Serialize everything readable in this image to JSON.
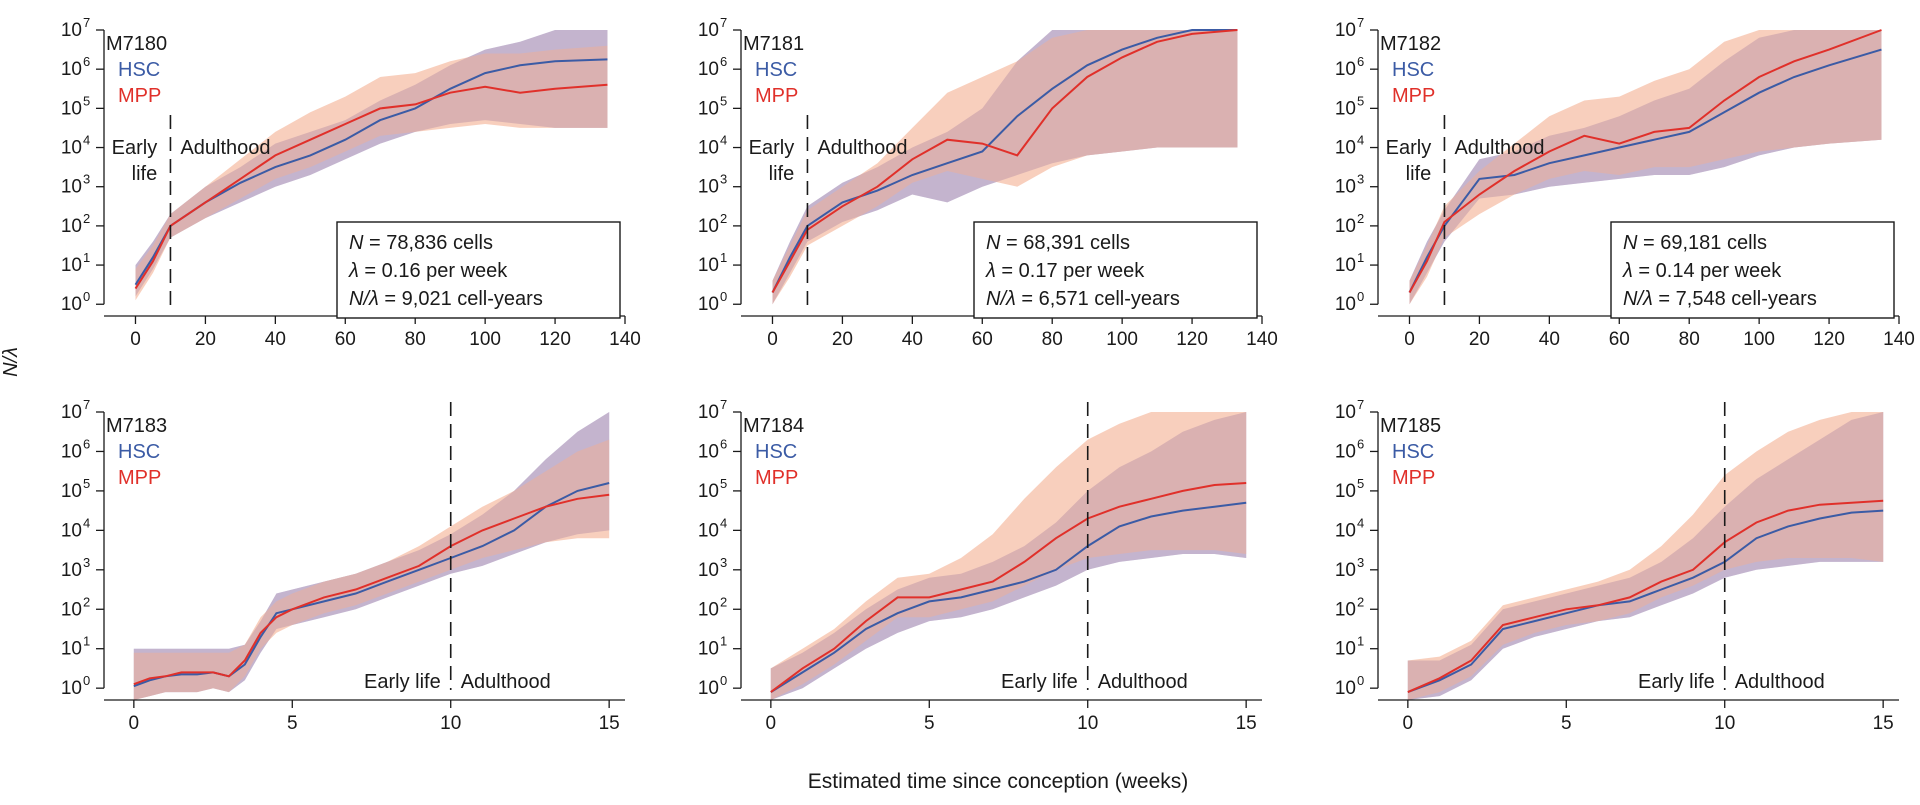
{
  "figure": {
    "ylabel": "N/λ",
    "xlabel": "Estimated time since conception (weeks)"
  },
  "colors": {
    "hsc": "#3b5ba5",
    "mpp": "#e0302a",
    "hsc_band": "#b9c1eb",
    "mpp_band": "#f6c3ad",
    "overlap": "#c69aa6",
    "axis": "#1a1a1a"
  },
  "legend": {
    "hsc": "HSC",
    "mpp": "MPP"
  },
  "chart_data": [
    {
      "type": "line",
      "id": "M7180",
      "title": "M7180",
      "xlim": [
        -5,
        140
      ],
      "xticks": [
        0,
        20,
        40,
        60,
        80,
        100,
        120,
        140
      ],
      "ylim_log10": [
        -0.3,
        7
      ],
      "yticks_log10": [
        0,
        1,
        2,
        3,
        4,
        5,
        6,
        7
      ],
      "divider_x": 10,
      "period_labels": {
        "early": [
          "Early",
          "life"
        ],
        "adult": "Adulthood"
      },
      "stats": {
        "N": "78,836",
        "lambda": "0.16",
        "N_over_lambda": "9,021"
      },
      "series": [
        {
          "name": "HSC",
          "x": [
            0,
            5,
            10,
            20,
            30,
            40,
            50,
            60,
            70,
            80,
            90,
            100,
            110,
            120,
            135
          ],
          "log10_y": [
            0.5,
            1.2,
            2.0,
            2.6,
            3.1,
            3.5,
            3.8,
            4.2,
            4.7,
            5.0,
            5.5,
            5.9,
            6.1,
            6.2,
            6.25
          ],
          "lower": [
            0.2,
            0.9,
            1.7,
            2.2,
            2.6,
            3.0,
            3.3,
            3.7,
            4.1,
            4.4,
            4.6,
            4.7,
            4.6,
            4.5,
            4.5
          ],
          "upper": [
            1.0,
            1.6,
            2.3,
            3.0,
            3.5,
            4.1,
            4.4,
            4.7,
            5.2,
            5.6,
            6.1,
            6.5,
            6.7,
            7.0,
            7.0
          ]
        },
        {
          "name": "MPP",
          "x": [
            0,
            5,
            10,
            20,
            30,
            40,
            50,
            60,
            70,
            80,
            90,
            100,
            110,
            120,
            135
          ],
          "log10_y": [
            0.4,
            1.1,
            2.0,
            2.6,
            3.2,
            3.8,
            4.2,
            4.6,
            5.0,
            5.1,
            5.4,
            5.55,
            5.4,
            5.5,
            5.6
          ],
          "lower": [
            0.1,
            0.8,
            1.7,
            2.2,
            2.7,
            3.2,
            3.5,
            3.9,
            4.3,
            4.4,
            4.5,
            4.6,
            4.5,
            4.5,
            4.5
          ],
          "upper": [
            0.9,
            1.5,
            2.3,
            3.0,
            3.7,
            4.4,
            4.9,
            5.3,
            5.8,
            5.9,
            6.2,
            6.4,
            6.4,
            6.5,
            6.6
          ]
        }
      ]
    },
    {
      "type": "line",
      "id": "M7181",
      "title": "M7181",
      "xlim": [
        -5,
        140
      ],
      "xticks": [
        0,
        20,
        40,
        60,
        80,
        100,
        120,
        140
      ],
      "ylim_log10": [
        -0.3,
        7
      ],
      "yticks_log10": [
        0,
        1,
        2,
        3,
        4,
        5,
        6,
        7
      ],
      "divider_x": 10,
      "period_labels": {
        "early": [
          "Early",
          "life"
        ],
        "adult": "Adulthood"
      },
      "stats": {
        "N": "68,391",
        "lambda": "0.17",
        "N_over_lambda": "6,571"
      },
      "series": [
        {
          "name": "HSC",
          "x": [
            0,
            5,
            10,
            20,
            30,
            40,
            50,
            60,
            70,
            80,
            90,
            100,
            110,
            120,
            133
          ],
          "log10_y": [
            0.3,
            1.2,
            2.0,
            2.6,
            2.9,
            3.3,
            3.6,
            3.9,
            4.8,
            5.5,
            6.1,
            6.5,
            6.8,
            7.0,
            7.0
          ],
          "lower": [
            0.0,
            0.8,
            1.6,
            2.1,
            2.4,
            2.8,
            2.6,
            3.0,
            3.3,
            3.6,
            3.8,
            3.9,
            4.0,
            4.0,
            4.0
          ],
          "upper": [
            0.6,
            1.6,
            2.5,
            3.1,
            3.5,
            4.0,
            4.4,
            5.0,
            6.2,
            7.0,
            7.0,
            7.0,
            7.0,
            7.0,
            7.0
          ]
        },
        {
          "name": "MPP",
          "x": [
            0,
            5,
            10,
            20,
            30,
            40,
            50,
            60,
            70,
            80,
            90,
            100,
            110,
            120,
            133
          ],
          "log10_y": [
            0.3,
            1.1,
            1.9,
            2.5,
            3.0,
            3.7,
            4.2,
            4.1,
            3.8,
            5.0,
            5.8,
            6.3,
            6.7,
            6.9,
            7.0
          ],
          "lower": [
            0.0,
            0.7,
            1.5,
            2.0,
            2.5,
            3.1,
            3.4,
            3.2,
            3.0,
            3.5,
            3.8,
            3.9,
            4.0,
            4.0,
            4.0
          ],
          "upper": [
            0.6,
            1.5,
            2.4,
            3.0,
            3.6,
            4.5,
            5.4,
            5.8,
            6.2,
            6.8,
            7.0,
            7.0,
            7.0,
            7.0,
            7.0
          ]
        }
      ]
    },
    {
      "type": "line",
      "id": "M7182",
      "title": "M7182",
      "xlim": [
        -5,
        140
      ],
      "xticks": [
        0,
        20,
        40,
        60,
        80,
        100,
        120,
        140
      ],
      "ylim_log10": [
        -0.3,
        7
      ],
      "yticks_log10": [
        0,
        1,
        2,
        3,
        4,
        5,
        6,
        7
      ],
      "divider_x": 10,
      "period_labels": {
        "early": [
          "Early",
          "life"
        ],
        "adult": "Adulthood"
      },
      "stats": {
        "N": "69,181",
        "lambda": "0.14",
        "N_over_lambda": "7,548"
      },
      "series": [
        {
          "name": "HSC",
          "x": [
            0,
            5,
            10,
            20,
            30,
            40,
            50,
            60,
            70,
            80,
            90,
            100,
            110,
            120,
            135
          ],
          "log10_y": [
            0.3,
            1.2,
            2.0,
            3.2,
            3.3,
            3.6,
            3.8,
            4.0,
            4.2,
            4.4,
            4.9,
            5.4,
            5.8,
            6.1,
            6.5
          ],
          "lower": [
            0.0,
            0.8,
            1.6,
            2.7,
            2.8,
            3.0,
            3.1,
            3.2,
            3.3,
            3.3,
            3.5,
            3.8,
            4.0,
            4.1,
            4.2
          ],
          "upper": [
            0.6,
            1.6,
            2.4,
            3.7,
            3.9,
            4.3,
            4.5,
            4.8,
            5.2,
            5.5,
            6.2,
            6.8,
            7.0,
            7.0,
            7.0
          ]
        },
        {
          "name": "MPP",
          "x": [
            0,
            5,
            10,
            20,
            30,
            40,
            50,
            60,
            70,
            80,
            90,
            100,
            110,
            120,
            135
          ],
          "log10_y": [
            0.3,
            1.1,
            2.1,
            2.8,
            3.4,
            3.9,
            4.3,
            4.1,
            4.4,
            4.5,
            5.2,
            5.8,
            6.2,
            6.5,
            7.0
          ],
          "lower": [
            0.0,
            0.7,
            1.7,
            2.3,
            2.8,
            3.2,
            3.4,
            3.3,
            3.5,
            3.5,
            3.7,
            3.9,
            4.0,
            4.1,
            4.2
          ],
          "upper": [
            0.6,
            1.5,
            2.5,
            3.4,
            4.1,
            4.8,
            5.2,
            5.3,
            5.7,
            6.0,
            6.7,
            7.0,
            7.0,
            7.0,
            7.0
          ]
        }
      ]
    },
    {
      "type": "line",
      "id": "M7183",
      "title": "M7183",
      "xlim": [
        -0.5,
        15.5
      ],
      "xticks": [
        0,
        5,
        10,
        15
      ],
      "ylim_log10": [
        -0.3,
        7
      ],
      "yticks_log10": [
        0,
        1,
        2,
        3,
        4,
        5,
        6,
        7
      ],
      "divider_x": 10,
      "period_labels": {
        "early": [
          "Early life"
        ],
        "adult": "Adulthood"
      },
      "series": [
        {
          "name": "HSC",
          "x": [
            0,
            0.5,
            1,
            1.5,
            2,
            2.5,
            3,
            3.5,
            4,
            4.5,
            5,
            6,
            7,
            8,
            9,
            10,
            11,
            12,
            13,
            14,
            15
          ],
          "log10_y": [
            0.05,
            0.2,
            0.3,
            0.35,
            0.35,
            0.4,
            0.3,
            0.6,
            1.3,
            1.9,
            2.0,
            2.2,
            2.4,
            2.7,
            3.0,
            3.3,
            3.6,
            4.0,
            4.6,
            5.0,
            5.2
          ],
          "lower": [
            -0.3,
            -0.2,
            -0.1,
            -0.1,
            -0.1,
            0.0,
            -0.1,
            0.2,
            0.9,
            1.5,
            1.6,
            1.8,
            2.0,
            2.3,
            2.6,
            2.9,
            3.1,
            3.4,
            3.7,
            3.9,
            4.0
          ],
          "upper": [
            1.0,
            1.0,
            1.0,
            1.0,
            1.0,
            1.0,
            1.0,
            1.1,
            1.7,
            2.4,
            2.5,
            2.7,
            2.9,
            3.2,
            3.5,
            3.9,
            4.4,
            5.0,
            5.8,
            6.5,
            7.0
          ]
        },
        {
          "name": "MPP",
          "x": [
            0,
            0.5,
            1,
            1.5,
            2,
            2.5,
            3,
            3.5,
            4,
            4.5,
            5,
            6,
            7,
            8,
            9,
            10,
            11,
            12,
            13,
            14,
            15
          ],
          "log10_y": [
            0.1,
            0.25,
            0.3,
            0.4,
            0.4,
            0.4,
            0.3,
            0.7,
            1.4,
            1.8,
            2.0,
            2.3,
            2.5,
            2.8,
            3.1,
            3.6,
            4.0,
            4.3,
            4.6,
            4.8,
            4.9
          ],
          "lower": [
            -0.3,
            -0.2,
            -0.1,
            -0.1,
            -0.1,
            0.0,
            -0.1,
            0.3,
            1.0,
            1.4,
            1.6,
            1.9,
            2.1,
            2.4,
            2.7,
            3.0,
            3.3,
            3.5,
            3.7,
            3.8,
            3.8
          ],
          "upper": [
            0.9,
            0.9,
            0.9,
            0.9,
            0.9,
            0.9,
            0.9,
            1.1,
            1.8,
            2.2,
            2.4,
            2.7,
            2.9,
            3.2,
            3.6,
            4.1,
            4.6,
            5.0,
            5.5,
            6.0,
            6.3
          ]
        }
      ]
    },
    {
      "type": "line",
      "id": "M7184",
      "title": "M7184",
      "xlim": [
        -0.5,
        15.5
      ],
      "xticks": [
        0,
        5,
        10,
        15
      ],
      "ylim_log10": [
        -0.3,
        7
      ],
      "yticks_log10": [
        0,
        1,
        2,
        3,
        4,
        5,
        6,
        7
      ],
      "divider_x": 10,
      "period_labels": {
        "early": [
          "Early life"
        ],
        "adult": "Adulthood"
      },
      "series": [
        {
          "name": "HSC",
          "x": [
            0,
            1,
            2,
            3,
            4,
            5,
            6,
            7,
            8,
            9,
            10,
            11,
            12,
            13,
            14,
            15
          ],
          "log10_y": [
            -0.1,
            0.4,
            0.9,
            1.5,
            1.9,
            2.2,
            2.3,
            2.5,
            2.7,
            3.0,
            3.6,
            4.1,
            4.35,
            4.5,
            4.6,
            4.7
          ],
          "lower": [
            -0.3,
            0.0,
            0.5,
            1.0,
            1.4,
            1.7,
            1.8,
            2.0,
            2.3,
            2.6,
            3.0,
            3.2,
            3.3,
            3.4,
            3.4,
            3.3
          ],
          "upper": [
            0.5,
            0.9,
            1.4,
            2.0,
            2.5,
            2.8,
            2.9,
            3.2,
            3.6,
            4.2,
            5.0,
            5.6,
            6.0,
            6.5,
            6.8,
            7.0
          ]
        },
        {
          "name": "MPP",
          "x": [
            0,
            1,
            2,
            3,
            4,
            5,
            6,
            7,
            8,
            9,
            10,
            11,
            12,
            13,
            14,
            15
          ],
          "log10_y": [
            -0.1,
            0.5,
            1.0,
            1.7,
            2.3,
            2.3,
            2.5,
            2.7,
            3.2,
            3.8,
            4.3,
            4.6,
            4.8,
            5.0,
            5.15,
            5.2
          ],
          "lower": [
            -0.3,
            0.1,
            0.6,
            1.2,
            1.8,
            1.8,
            2.0,
            2.2,
            2.6,
            3.0,
            3.3,
            3.4,
            3.5,
            3.5,
            3.5,
            3.4
          ],
          "upper": [
            0.5,
            1.0,
            1.5,
            2.2,
            2.8,
            2.9,
            3.3,
            3.9,
            4.8,
            5.6,
            6.3,
            6.7,
            7.0,
            7.0,
            7.0,
            7.0
          ]
        }
      ]
    },
    {
      "type": "line",
      "id": "M7185",
      "title": "M7185",
      "xlim": [
        -0.5,
        15.5
      ],
      "xticks": [
        0,
        5,
        10,
        15
      ],
      "ylim_log10": [
        -0.3,
        7
      ],
      "yticks_log10": [
        0,
        1,
        2,
        3,
        4,
        5,
        6,
        7
      ],
      "divider_x": 10,
      "period_labels": {
        "early": [
          "Early life"
        ],
        "adult": "Adulthood"
      },
      "series": [
        {
          "name": "HSC",
          "x": [
            0,
            1,
            2,
            3,
            4,
            5,
            6,
            7,
            8,
            9,
            10,
            11,
            12,
            13,
            14,
            15
          ],
          "log10_y": [
            -0.1,
            0.2,
            0.6,
            1.5,
            1.7,
            1.9,
            2.1,
            2.2,
            2.5,
            2.8,
            3.2,
            3.8,
            4.1,
            4.3,
            4.45,
            4.5
          ],
          "lower": [
            -0.3,
            -0.2,
            0.2,
            1.0,
            1.3,
            1.5,
            1.7,
            1.8,
            2.1,
            2.4,
            2.8,
            3.0,
            3.1,
            3.2,
            3.2,
            3.2
          ],
          "upper": [
            0.7,
            0.7,
            1.1,
            2.0,
            2.2,
            2.4,
            2.6,
            2.8,
            3.2,
            3.8,
            4.6,
            5.3,
            5.8,
            6.3,
            6.8,
            7.0
          ]
        },
        {
          "name": "MPP",
          "x": [
            0,
            1,
            2,
            3,
            4,
            5,
            6,
            7,
            8,
            9,
            10,
            11,
            12,
            13,
            14,
            15
          ],
          "log10_y": [
            -0.1,
            0.25,
            0.7,
            1.6,
            1.8,
            2.0,
            2.1,
            2.3,
            2.7,
            3.0,
            3.7,
            4.2,
            4.5,
            4.65,
            4.7,
            4.75
          ],
          "lower": [
            -0.3,
            -0.1,
            0.3,
            1.1,
            1.4,
            1.6,
            1.7,
            1.9,
            2.3,
            2.6,
            3.0,
            3.2,
            3.3,
            3.3,
            3.3,
            3.2
          ],
          "upper": [
            0.7,
            0.8,
            1.2,
            2.1,
            2.3,
            2.5,
            2.7,
            3.0,
            3.6,
            4.4,
            5.4,
            6.0,
            6.5,
            6.8,
            7.0,
            7.0
          ]
        }
      ]
    }
  ]
}
